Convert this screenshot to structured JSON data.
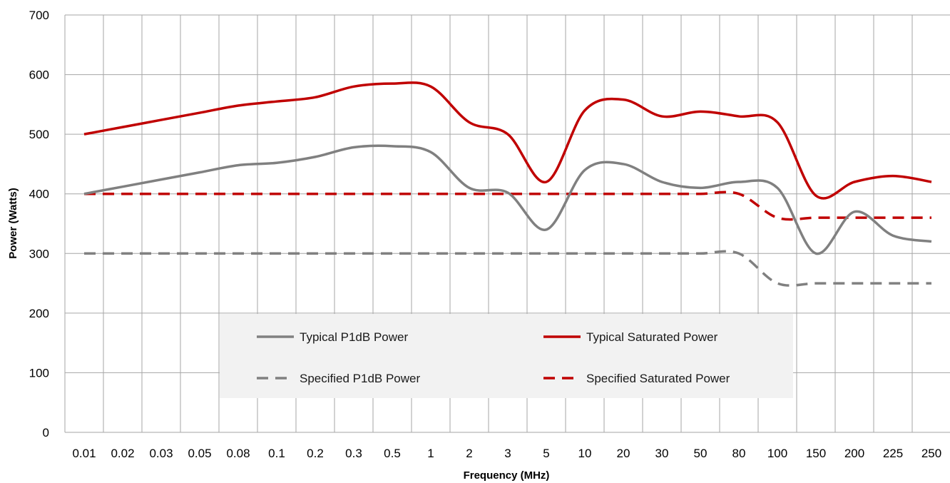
{
  "chart_data": {
    "type": "line",
    "xlabel": "Frequency (MHz)",
    "ylabel": "Power (Watts)",
    "categories": [
      "0.01",
      "0.02",
      "0.03",
      "0.05",
      "0.08",
      "0.1",
      "0.2",
      "0.3",
      "0.5",
      "1",
      "2",
      "3",
      "5",
      "10",
      "20",
      "30",
      "50",
      "80",
      "100",
      "150",
      "200",
      "225",
      "250"
    ],
    "ylim": [
      0,
      700
    ],
    "yticks": [
      0,
      100,
      200,
      300,
      400,
      500,
      600,
      700
    ],
    "grid": true,
    "legend_placement": "center",
    "series": [
      {
        "name": "Typical P1dB Power",
        "color": "#808080",
        "dash": false,
        "values": [
          400,
          412,
          424,
          436,
          448,
          452,
          462,
          478,
          480,
          470,
          410,
          402,
          340,
          440,
          450,
          420,
          410,
          420,
          410,
          300,
          370,
          330,
          320
        ]
      },
      {
        "name": "Typical Saturated Power",
        "color": "#c00000",
        "dash": false,
        "values": [
          500,
          512,
          524,
          536,
          548,
          555,
          562,
          580,
          585,
          580,
          520,
          500,
          420,
          540,
          558,
          530,
          538,
          530,
          520,
          397,
          420,
          430,
          420
        ]
      },
      {
        "name": "Specified P1dB Power",
        "color": "#808080",
        "dash": true,
        "values": [
          300,
          300,
          300,
          300,
          300,
          300,
          300,
          300,
          300,
          300,
          300,
          300,
          300,
          300,
          300,
          300,
          300,
          300,
          250,
          250,
          250,
          250,
          250
        ]
      },
      {
        "name": "Specified Saturated Power",
        "color": "#c00000",
        "dash": true,
        "values": [
          400,
          400,
          400,
          400,
          400,
          400,
          400,
          400,
          400,
          400,
          400,
          400,
          400,
          400,
          400,
          400,
          400,
          400,
          360,
          360,
          360,
          360,
          360
        ]
      }
    ]
  }
}
